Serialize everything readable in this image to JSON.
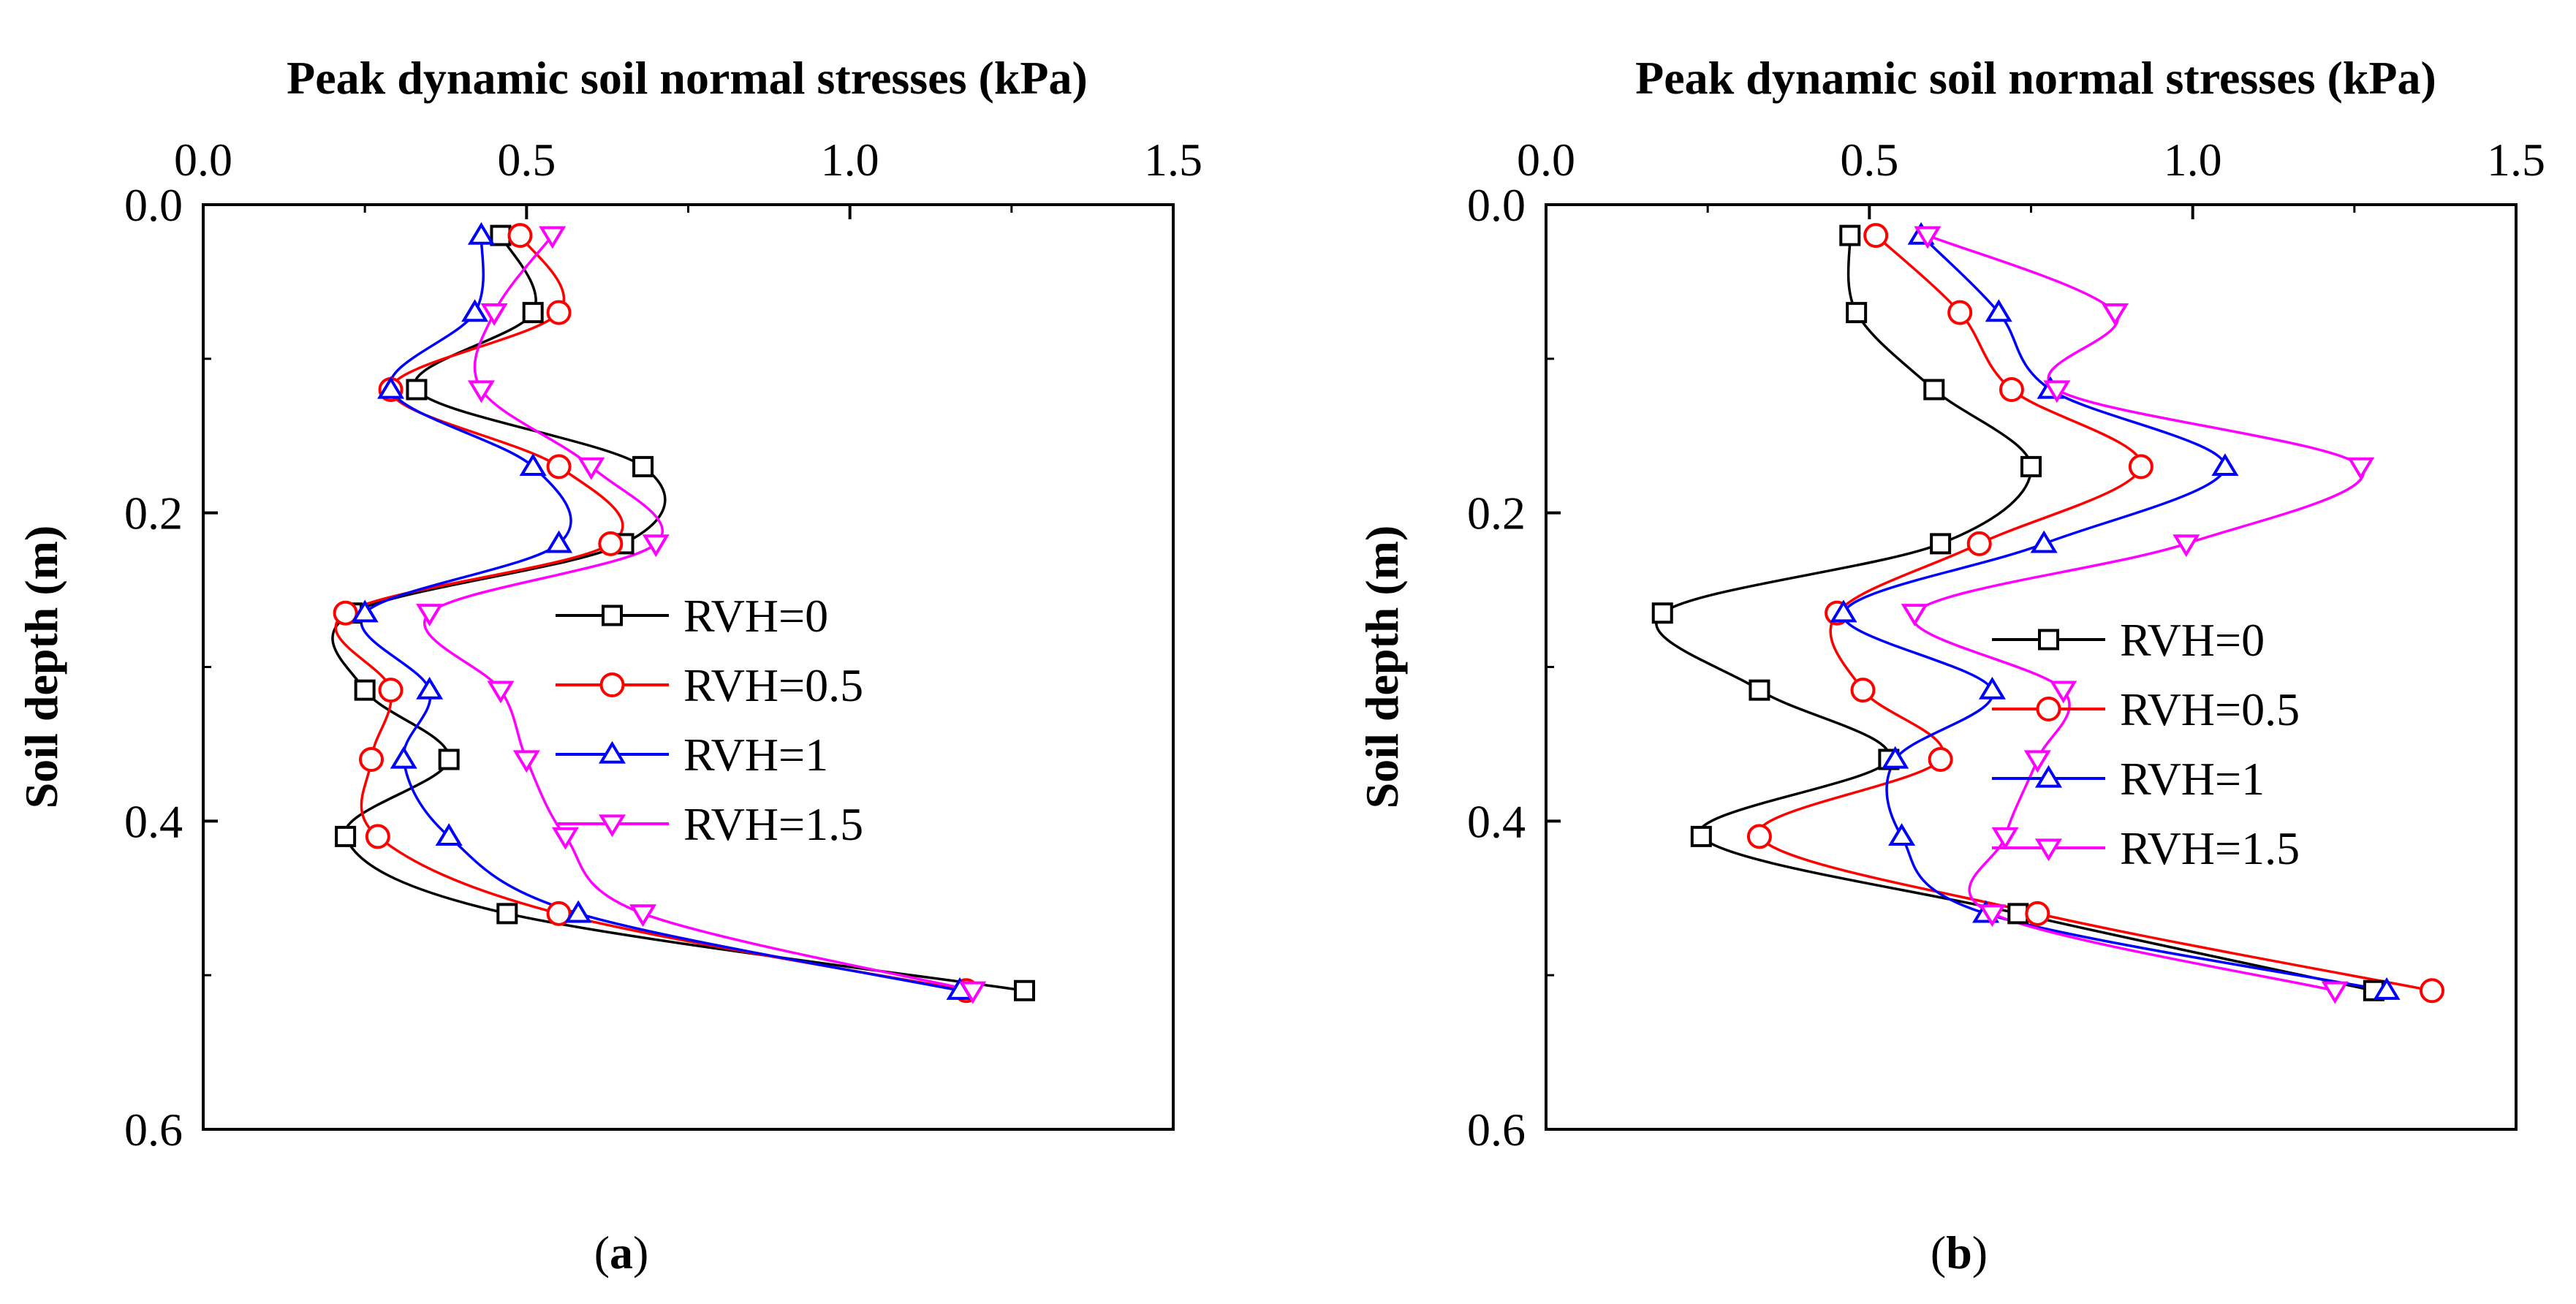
{
  "chart_data": [
    {
      "type": "scatter",
      "panel_label": "a",
      "xlabel": "Peak dynamic soil normal stresses (kPa)",
      "ylabel": "Soil depth (m)",
      "xlim": [
        0.0,
        1.5
      ],
      "ylim": [
        0.0,
        0.6
      ],
      "y_inverted": true,
      "x_axis_position": "top",
      "xticks": [
        "0.0",
        "0.5",
        "1.0",
        "1.5"
      ],
      "yticks": [
        "0.0",
        "0.2",
        "0.4",
        "0.6"
      ],
      "legend_position": "center-right",
      "series": [
        {
          "name": "RVH=0",
          "color": "#000000",
          "marker": "square",
          "x": [
            0.46,
            0.51,
            0.33,
            0.68,
            0.65,
            0.23,
            0.25,
            0.38,
            0.22,
            0.47,
            1.27
          ],
          "y": [
            0.02,
            0.07,
            0.12,
            0.17,
            0.22,
            0.265,
            0.315,
            0.36,
            0.41,
            0.46,
            0.51
          ]
        },
        {
          "name": "RVH=0.5",
          "color": "#ff0000",
          "marker": "circle",
          "x": [
            0.49,
            0.55,
            0.29,
            0.55,
            0.63,
            0.22,
            0.29,
            0.26,
            0.27,
            0.55,
            1.18
          ],
          "y": [
            0.02,
            0.07,
            0.12,
            0.17,
            0.22,
            0.265,
            0.315,
            0.36,
            0.41,
            0.46,
            0.51
          ]
        },
        {
          "name": "RVH=1",
          "color": "#0000ff",
          "marker": "triangle-up",
          "x": [
            0.43,
            0.42,
            0.29,
            0.51,
            0.55,
            0.25,
            0.35,
            0.31,
            0.38,
            0.58,
            1.17
          ],
          "y": [
            0.02,
            0.07,
            0.12,
            0.17,
            0.22,
            0.265,
            0.315,
            0.36,
            0.41,
            0.46,
            0.51
          ]
        },
        {
          "name": "RVH=1.5",
          "color": "#ff00ff",
          "marker": "triangle-down",
          "x": [
            0.54,
            0.45,
            0.43,
            0.6,
            0.7,
            0.35,
            0.46,
            0.5,
            0.56,
            0.68,
            1.19
          ],
          "y": [
            0.02,
            0.07,
            0.12,
            0.17,
            0.22,
            0.265,
            0.315,
            0.36,
            0.41,
            0.46,
            0.51
          ]
        }
      ]
    },
    {
      "type": "scatter",
      "panel_label": "b",
      "xlabel": "Peak dynamic soil normal stresses (kPa)",
      "ylabel": "Soil depth (m)",
      "xlim": [
        0.0,
        1.5
      ],
      "ylim": [
        0.0,
        0.6
      ],
      "y_inverted": true,
      "x_axis_position": "top",
      "xticks": [
        "0.0",
        "0.5",
        "1.0",
        "1.5"
      ],
      "yticks": [
        "0.0",
        "0.2",
        "0.4",
        "0.6"
      ],
      "legend_position": "center-right",
      "series": [
        {
          "name": "RVH=0",
          "color": "#000000",
          "marker": "square",
          "x": [
            0.47,
            0.48,
            0.6,
            0.75,
            0.61,
            0.18,
            0.33,
            0.53,
            0.24,
            0.73,
            1.28
          ],
          "y": [
            0.02,
            0.07,
            0.12,
            0.17,
            0.22,
            0.265,
            0.315,
            0.36,
            0.41,
            0.46,
            0.51
          ]
        },
        {
          "name": "RVH=0.5",
          "color": "#ff0000",
          "marker": "circle",
          "x": [
            0.51,
            0.64,
            0.72,
            0.92,
            0.67,
            0.45,
            0.49,
            0.61,
            0.33,
            0.76,
            1.37
          ],
          "y": [
            0.02,
            0.07,
            0.12,
            0.17,
            0.22,
            0.265,
            0.315,
            0.36,
            0.41,
            0.46,
            0.51
          ]
        },
        {
          "name": "RVH=1",
          "color": "#0000ff",
          "marker": "triangle-up",
          "x": [
            0.58,
            0.7,
            0.78,
            1.05,
            0.77,
            0.46,
            0.69,
            0.54,
            0.55,
            0.68,
            1.3
          ],
          "y": [
            0.02,
            0.07,
            0.12,
            0.17,
            0.22,
            0.265,
            0.315,
            0.36,
            0.41,
            0.46,
            0.51
          ]
        },
        {
          "name": "RVH=1.5",
          "color": "#ff00ff",
          "marker": "triangle-down",
          "x": [
            0.59,
            0.88,
            0.79,
            1.26,
            0.99,
            0.57,
            0.8,
            0.76,
            0.71,
            0.69,
            1.22
          ],
          "y": [
            0.02,
            0.07,
            0.12,
            0.17,
            0.22,
            0.265,
            0.315,
            0.36,
            0.41,
            0.46,
            0.51
          ]
        }
      ]
    }
  ]
}
